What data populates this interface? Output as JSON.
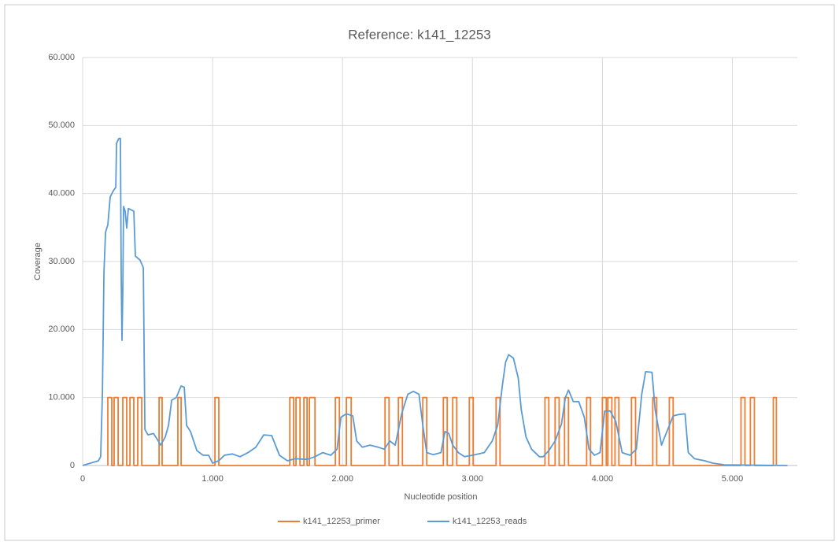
{
  "chart_data": {
    "type": "line",
    "title": "Reference: k141_12253",
    "xlabel": "Nucleotide position",
    "ylabel": "Coverage",
    "xlim": [
      0,
      5500
    ],
    "ylim": [
      0,
      60000
    ],
    "xticks": [
      0,
      {
        "value": 1000,
        "label": "1.000"
      },
      {
        "value": 2000,
        "label": "2.000"
      },
      {
        "value": 3000,
        "label": "3.000"
      },
      {
        "value": 4000,
        "label": "4.000"
      },
      {
        "value": 5000,
        "label": "5.000"
      }
    ],
    "yticks": [
      0,
      {
        "value": 10000,
        "label": "10.000"
      },
      {
        "value": 20000,
        "label": "20.000"
      },
      {
        "value": 30000,
        "label": "30.000"
      },
      {
        "value": 40000,
        "label": "40.000"
      },
      {
        "value": 50000,
        "label": "50.000"
      },
      {
        "value": 60000,
        "label": "60.000"
      }
    ],
    "grid": true,
    "legend": "bottom",
    "series": [
      {
        "name": "k141_12253_primer",
        "color": "#ed7d31",
        "x": [
          194,
          194,
          224,
          224,
          242,
          242,
          273,
          273,
          309,
          309,
          339,
          339,
          364,
          364,
          394,
          394,
          424,
          424,
          455,
          455,
          588,
          588,
          612,
          612,
          733,
          733,
          758,
          758,
          1018,
          1018,
          1048,
          1048,
          1594,
          1594,
          1624,
          1624,
          1642,
          1642,
          1673,
          1673,
          1703,
          1703,
          1727,
          1727,
          1745,
          1745,
          1788,
          1788,
          1945,
          1945,
          1976,
          1976,
          2030,
          2030,
          2067,
          2067,
          2327,
          2327,
          2358,
          2358,
          2430,
          2430,
          2461,
          2461,
          2618,
          2618,
          2648,
          2648,
          2776,
          2776,
          2806,
          2806,
          2848,
          2848,
          2879,
          2879,
          2976,
          2976,
          3006,
          3006,
          3182,
          3182,
          3212,
          3212,
          3558,
          3558,
          3588,
          3588,
          3636,
          3636,
          3667,
          3667,
          3709,
          3709,
          3739,
          3739,
          3879,
          3879,
          3909,
          3909,
          4000,
          4000,
          4030,
          4030,
          4042,
          4042,
          4073,
          4073,
          4097,
          4097,
          4127,
          4127,
          4224,
          4224,
          4255,
          4255,
          4388,
          4388,
          4418,
          4418,
          4515,
          4515,
          4545,
          4545,
          5067,
          5067,
          5097,
          5097,
          5139,
          5139,
          5170,
          5170,
          5315,
          5315,
          5339,
          5339
        ],
        "values": [
          0,
          10000,
          10000,
          0,
          0,
          10000,
          10000,
          0,
          0,
          10000,
          10000,
          0,
          0,
          10000,
          10000,
          0,
          0,
          10000,
          10000,
          0,
          0,
          10000,
          10000,
          0,
          0,
          10000,
          10000,
          0,
          0,
          10000,
          10000,
          0,
          0,
          10000,
          10000,
          0,
          0,
          10000,
          10000,
          0,
          0,
          10000,
          10000,
          0,
          0,
          10000,
          10000,
          0,
          0,
          10000,
          10000,
          0,
          0,
          10000,
          10000,
          0,
          0,
          10000,
          10000,
          0,
          0,
          10000,
          10000,
          0,
          0,
          10000,
          10000,
          0,
          0,
          10000,
          10000,
          0,
          0,
          10000,
          10000,
          0,
          0,
          10000,
          10000,
          0,
          0,
          10000,
          10000,
          0,
          0,
          10000,
          10000,
          0,
          0,
          10000,
          10000,
          0,
          0,
          10000,
          10000,
          0,
          0,
          10000,
          10000,
          0,
          0,
          10000,
          10000,
          0,
          0,
          10000,
          10000,
          0,
          0,
          10000,
          10000,
          0,
          0,
          10000,
          10000,
          0,
          0,
          10000,
          10000,
          0,
          0,
          10000,
          10000,
          0,
          0,
          10000,
          10000,
          0,
          0,
          10000,
          10000,
          0,
          0,
          10000,
          10000,
          0
        ]
      },
      {
        "name": "k141_12253_reads",
        "color": "#5b9bd5",
        "x": [
          0,
          121,
          139,
          152,
          164,
          176,
          194,
          212,
          236,
          255,
          261,
          279,
          291,
          297,
          303,
          309,
          315,
          327,
          339,
          352,
          394,
          406,
          442,
          467,
          479,
          503,
          545,
          576,
          600,
          636,
          661,
          685,
          721,
          758,
          782,
          800,
          830,
          879,
          927,
          970,
          1000,
          1048,
          1091,
          1152,
          1212,
          1273,
          1333,
          1394,
          1455,
          1515,
          1576,
          1636,
          1727,
          1788,
          1848,
          1909,
          1958,
          1988,
          2030,
          2079,
          2109,
          2152,
          2212,
          2273,
          2321,
          2364,
          2406,
          2455,
          2503,
          2545,
          2588,
          2618,
          2648,
          2697,
          2758,
          2788,
          2818,
          2848,
          2891,
          2939,
          3000,
          3091,
          3152,
          3194,
          3230,
          3255,
          3279,
          3315,
          3352,
          3376,
          3412,
          3455,
          3515,
          3545,
          3588,
          3636,
          3685,
          3715,
          3739,
          3776,
          3818,
          3861,
          3897,
          3939,
          3982,
          4018,
          4061,
          4103,
          4152,
          4212,
          4261,
          4303,
          4333,
          4382,
          4406,
          4455,
          4503,
          4545,
          4588,
          4636,
          4661,
          4709,
          4788,
          4848,
          4939,
          5424
        ],
        "values": [
          0,
          700,
          1300,
          10500,
          28500,
          34300,
          35400,
          39500,
          40400,
          40900,
          47400,
          48100,
          48100,
          27900,
          18400,
          25500,
          38100,
          37400,
          34900,
          37800,
          37400,
          30800,
          30200,
          29100,
          5300,
          4500,
          4700,
          3800,
          3000,
          4200,
          5900,
          9600,
          10000,
          11700,
          11500,
          5900,
          5000,
          2200,
          1500,
          1500,
          350,
          700,
          1500,
          1700,
          1300,
          1900,
          2700,
          4500,
          4400,
          1500,
          700,
          1000,
          900,
          1300,
          1900,
          1500,
          2400,
          7100,
          7600,
          7300,
          3600,
          2700,
          3000,
          2700,
          2400,
          3600,
          3000,
          7600,
          10500,
          10900,
          10500,
          5900,
          1900,
          1600,
          1900,
          5000,
          4700,
          3000,
          1900,
          1300,
          1500,
          1900,
          3600,
          5900,
          11700,
          15200,
          16300,
          15800,
          12900,
          8200,
          4200,
          2400,
          1300,
          1300,
          2200,
          3600,
          6100,
          10000,
          11100,
          9400,
          9400,
          7100,
          2400,
          1500,
          1900,
          8000,
          8000,
          6500,
          1900,
          1500,
          2400,
          10500,
          13800,
          13700,
          8200,
          3000,
          5300,
          7300,
          7500,
          7600,
          1900,
          1000,
          700,
          350,
          100,
          0
        ]
      }
    ]
  }
}
